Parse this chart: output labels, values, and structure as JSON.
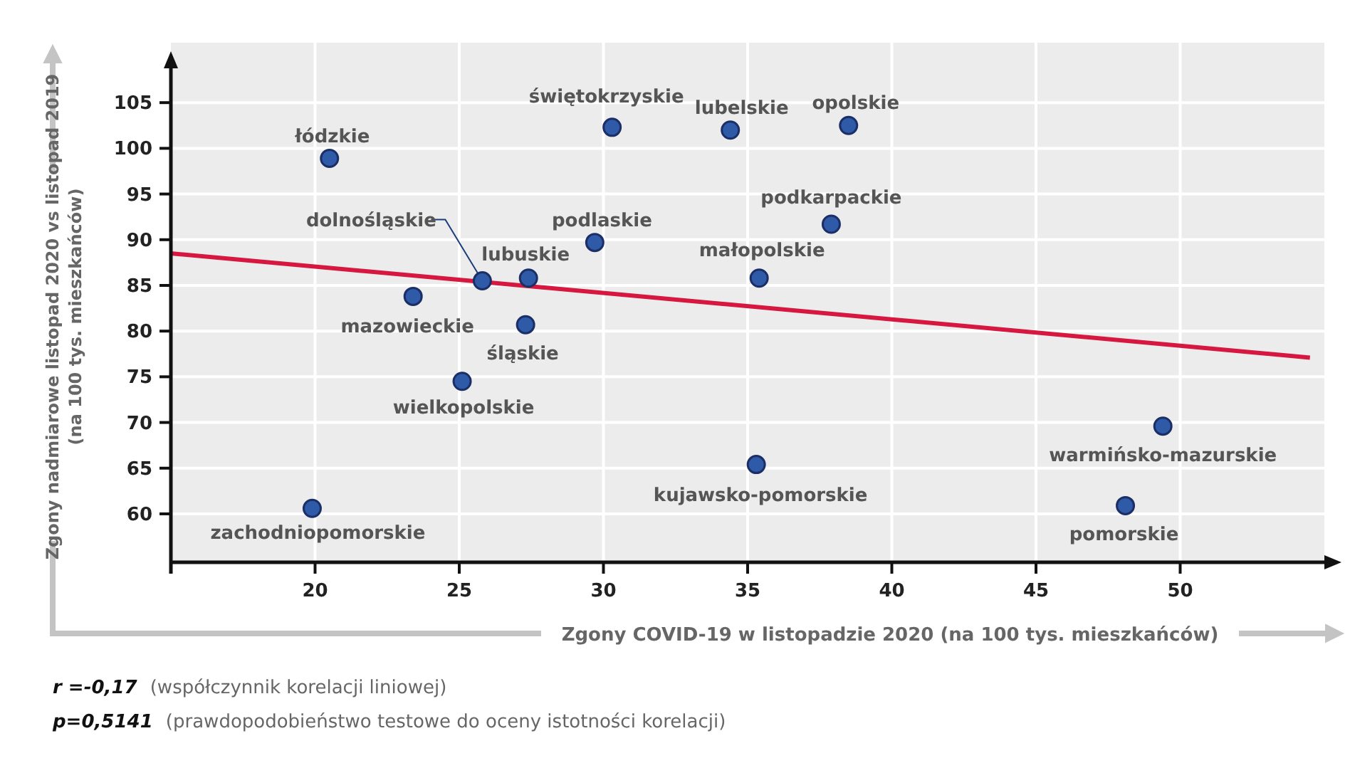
{
  "chart_data": {
    "type": "scatter",
    "xlabel": "Zgony COVID-19 w listopadzie 2020 (na 100 tys. mieszkańców)",
    "ylabel": "Zgony nadmiarowe listopad 2020 vs listopad 2019\n(na 100 tys. mieszkańców)",
    "xlim": [
      15,
      55
    ],
    "ylim": [
      54.7,
      110
    ],
    "xticks": [
      20,
      25,
      30,
      35,
      40,
      45,
      50
    ],
    "yticks": [
      60,
      65,
      70,
      75,
      80,
      85,
      90,
      95,
      100,
      105
    ],
    "grid": true,
    "marker": "circle",
    "series": [
      {
        "color": "#2f5aa8",
        "x": [
          20.5,
          30.3,
          34.4,
          38.5,
          37.9,
          29.7,
          35.4,
          25.8,
          27.4,
          23.4,
          27.3,
          25.1,
          19.9,
          35.3,
          49.4,
          48.1
        ],
        "values": [
          98.9,
          102.3,
          102.0,
          102.5,
          91.7,
          89.7,
          85.8,
          85.5,
          85.8,
          83.8,
          80.7,
          74.5,
          60.6,
          65.4,
          69.6,
          60.9
        ]
      },
      {
        "type": "line",
        "marker": "none",
        "color": "#d6173f",
        "x": [
          15,
          54.5
        ],
        "values": [
          88.5,
          77.1
        ]
      }
    ],
    "annotations": [
      {
        "text": "łódzkie",
        "x": 20.5,
        "y": 98.9
      },
      {
        "text": "świętokrzyskie",
        "x": 30.3,
        "y": 102.3
      },
      {
        "text": "lubelskie",
        "x": 34.4,
        "y": 102.0
      },
      {
        "text": "opolskie",
        "x": 38.5,
        "y": 102.5
      },
      {
        "text": "podkarpackie",
        "x": 37.9,
        "y": 91.7
      },
      {
        "text": "podlaskie",
        "x": 29.7,
        "y": 89.7
      },
      {
        "text": "małopolskie",
        "x": 35.4,
        "y": 85.8
      },
      {
        "text": "dolnośląskie",
        "x": 25.8,
        "y": 85.5
      },
      {
        "text": "lubuskie",
        "x": 27.4,
        "y": 85.8
      },
      {
        "text": "mazowieckie",
        "x": 23.4,
        "y": 83.8
      },
      {
        "text": "śląskie",
        "x": 27.3,
        "y": 80.7
      },
      {
        "text": "wielkopolskie",
        "x": 25.1,
        "y": 74.5
      },
      {
        "text": "zachodniopomorskie",
        "x": 19.9,
        "y": 60.6
      },
      {
        "text": "kujawsko-pomorskie",
        "x": 35.3,
        "y": 65.4
      },
      {
        "text": "warmińsko-mazurskie",
        "x": 49.4,
        "y": 69.6
      },
      {
        "text": "pomorskie",
        "x": 48.1,
        "y": 60.9
      },
      "r =-0,17  (współczynnik korelacji liniowej)",
      "p=0,5141  (prawdopodobieństwo testowe do oceny istotności korelacji)"
    ]
  }
}
